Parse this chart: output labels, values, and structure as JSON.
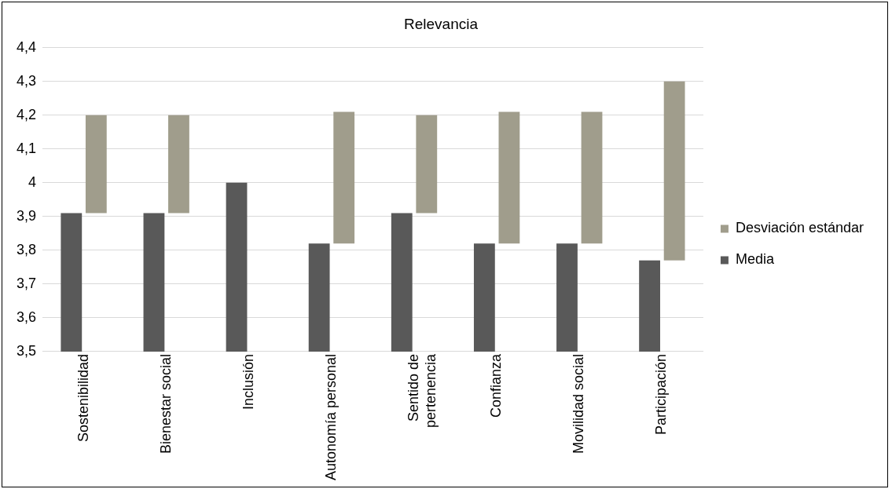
{
  "chart_data": {
    "type": "bar",
    "title": "Relevancia",
    "categories": [
      "Sostenibilidad",
      "Bienestar social",
      "Inclusión",
      "Autonomía personal",
      "Sentido de pertenencia",
      "Confianza",
      "Movilidad social",
      "Participación"
    ],
    "series": [
      {
        "name": "Media",
        "color": "#595959",
        "values": [
          3.91,
          3.91,
          4.0,
          3.82,
          3.91,
          3.82,
          3.82,
          3.77
        ]
      },
      {
        "name": "Desviación estándar",
        "color": "#a09d8c",
        "base": [
          3.91,
          3.91,
          null,
          3.82,
          3.91,
          3.82,
          3.82,
          3.77
        ],
        "values": [
          0.29,
          0.29,
          null,
          0.39,
          0.29,
          0.39,
          0.39,
          0.53
        ]
      }
    ],
    "ylim": [
      3.5,
      4.4
    ],
    "yticks": [
      {
        "value": 3.5,
        "label": "3,5"
      },
      {
        "value": 3.6,
        "label": "3,6"
      },
      {
        "value": 3.7,
        "label": "3,7"
      },
      {
        "value": 3.8,
        "label": "3,8"
      },
      {
        "value": 3.9,
        "label": "3,9"
      },
      4,
      {
        "value": 4.1,
        "label": "4,1"
      },
      {
        "value": 4.2,
        "label": "4,2"
      },
      {
        "value": 4.3,
        "label": "4,3"
      },
      {
        "value": 4.4,
        "label": "4,4"
      }
    ],
    "grid": "y",
    "legend": "right"
  }
}
